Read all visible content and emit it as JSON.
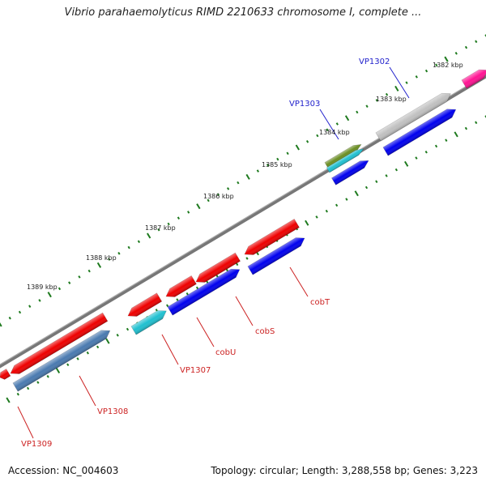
{
  "title": "Vibrio parahaemolyticus RIMD 2210633 chromosome I, complete ...",
  "footer": {
    "accession": "Accession: NC_004603",
    "summary": "Topology: circular; Length: 3,288,558 bp; Genes: 3,223"
  },
  "colors": {
    "backbone": "#808080",
    "tick": "#1e7a1e",
    "forward_label": "#2222cc",
    "reverse_label": "#cc2222"
  },
  "ticks": [
    {
      "label": "1382 kbp"
    },
    {
      "label": "1383 kbp"
    },
    {
      "label": "1384 kbp"
    },
    {
      "label": "1385 kbp"
    },
    {
      "label": "1386 kbp"
    },
    {
      "label": "1387 kbp"
    },
    {
      "label": "1388 kbp"
    },
    {
      "label": "1389 kbp"
    }
  ],
  "features": [
    {
      "color": "#ff1493"
    },
    {
      "color": "#c0c0c0"
    },
    {
      "color": "#0000ee"
    },
    {
      "color": "#6b8e23"
    },
    {
      "color": "#20c0d0"
    },
    {
      "color": "#0000ee"
    },
    {
      "color": "#ee0000"
    },
    {
      "color": "#ee0000"
    },
    {
      "color": "#ee0000"
    },
    {
      "color": "#ee0000"
    },
    {
      "color": "#0000ee"
    },
    {
      "color": "#0000ee"
    },
    {
      "color": "#20c0d0"
    },
    {
      "color": "#ee0000"
    },
    {
      "color": "#4a7ab0"
    },
    {
      "color": "#ee0000"
    }
  ],
  "gene_labels": [
    {
      "text": "VP1302",
      "strand": "forward"
    },
    {
      "text": "VP1303",
      "strand": "forward"
    },
    {
      "text": "cobT",
      "strand": "reverse"
    },
    {
      "text": "cobS",
      "strand": "reverse"
    },
    {
      "text": "cobU",
      "strand": "reverse"
    },
    {
      "text": "VP1307",
      "strand": "reverse"
    },
    {
      "text": "VP1308",
      "strand": "reverse"
    },
    {
      "text": "VP1309",
      "strand": "reverse"
    }
  ]
}
